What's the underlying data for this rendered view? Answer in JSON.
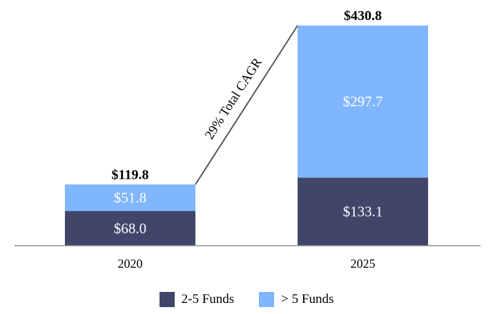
{
  "chart_data": {
    "type": "bar",
    "stacked": true,
    "categories": [
      "2020",
      "2025"
    ],
    "series": [
      {
        "name": "2-5 Funds",
        "values": [
          68.0,
          133.1
        ],
        "labels": [
          "$68.0",
          "$133.1"
        ],
        "color": "#3f4669"
      },
      {
        "name": "> 5 Funds",
        "values": [
          51.8,
          297.7
        ],
        "labels": [
          "$51.8",
          "$297.7"
        ],
        "color": "#7fb6fd"
      }
    ],
    "totals": [
      119.8,
      430.8
    ],
    "total_labels": [
      "$119.8",
      "$430.8"
    ],
    "annotation": "29% Total CAGR",
    "ylim": [
      0,
      430.8
    ],
    "grid": false,
    "legend_position": "bottom"
  }
}
